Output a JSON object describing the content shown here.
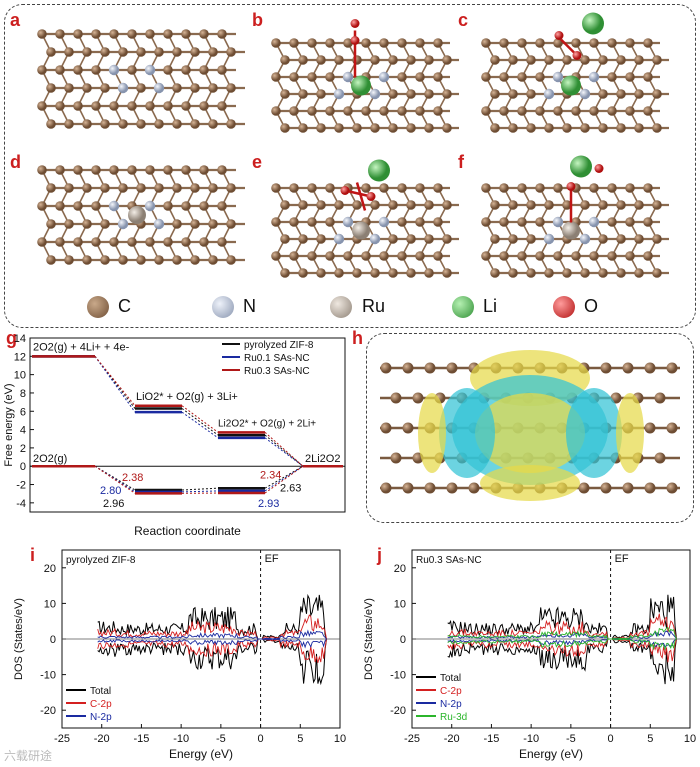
{
  "panels": {
    "a": "a",
    "b": "b",
    "c": "c",
    "d": "d",
    "e": "e",
    "f": "f",
    "g": "g",
    "h": "h",
    "i": "i",
    "j": "j"
  },
  "structure_legend": [
    {
      "label": "C",
      "color": "#8a6a4f"
    },
    {
      "label": "N",
      "color": "#a9b6cf"
    },
    {
      "label": "Ru",
      "color": "#b8aca0"
    },
    {
      "label": "Li",
      "color": "#56b95a"
    },
    {
      "label": "O",
      "color": "#d92a2a"
    }
  ],
  "chart_data": [
    {
      "type": "line",
      "id": "g",
      "ylabel": "Free energy (eV)",
      "xlabel": "Reaction coordinate",
      "ylim": [
        -5,
        14
      ],
      "yticks": [
        -4,
        -2,
        0,
        2,
        4,
        6,
        8,
        10,
        12,
        14
      ],
      "legend": [
        "pyrolyzed ZIF-8",
        "Ru0.1 SAs-NC",
        "Ru0.3 SAs-NC"
      ],
      "legend_placement": "top-right",
      "series": [
        {
          "name": "pyrolyzed ZIF-8",
          "color": "#111111",
          "upper": [
            12,
            6.3,
            3.4,
            0
          ],
          "lower": [
            0,
            -2.6,
            -2.4,
            0
          ]
        },
        {
          "name": "Ru0.1 SAs-NC",
          "color": "#1a2aa0",
          "upper": [
            12,
            5.9,
            3.1,
            0
          ],
          "lower": [
            0,
            -2.8,
            -2.7,
            0
          ]
        },
        {
          "name": "Ru0.3 SAs-NC",
          "color": "#b01818",
          "upper": [
            12,
            6.6,
            3.7,
            0
          ],
          "lower": [
            0,
            -2.96,
            -2.93,
            0
          ]
        }
      ],
      "level_labels": {
        "s0": "2O2(g) + 4Li+ + 4e-",
        "s1": "LiO2* + O2(g) + 3Li+",
        "s2": "Li2O2* + O2(g) + 2Li+",
        "s3": "2Li2O2",
        "ref": "2O2(g)"
      },
      "value_labels": [
        {
          "text": "2.38",
          "color": "#b01818"
        },
        {
          "text": "2.80",
          "color": "#1a2aa0"
        },
        {
          "text": "2.96",
          "color": "#111111"
        },
        {
          "text": "2.34",
          "color": "#b01818"
        },
        {
          "text": "2.63",
          "color": "#111111"
        },
        {
          "text": "2.93",
          "color": "#1a2aa0"
        }
      ]
    },
    {
      "type": "line",
      "id": "i",
      "title": "pyrolyzed ZIF-8",
      "xlabel": "Energy (eV)",
      "ylabel": "DOS (States/eV)",
      "xlim": [
        -25,
        10
      ],
      "ylim": [
        -25,
        25
      ],
      "xticks": [
        -25,
        -20,
        -15,
        -10,
        -5,
        0,
        5,
        10
      ],
      "yticks": [
        -20,
        -10,
        0,
        10,
        20
      ],
      "fermi_label": "EF",
      "legend": [
        "Total",
        "C-2p",
        "N-2p"
      ],
      "legend_colors": [
        "#000000",
        "#d42020",
        "#1a2aa0"
      ],
      "legend_placement": "bottom-left"
    },
    {
      "type": "line",
      "id": "j",
      "title": "Ru0.3 SAs-NC",
      "xlabel": "Energy (eV)",
      "ylabel": "DOS (States/eV)",
      "xlim": [
        -25,
        10
      ],
      "ylim": [
        -25,
        25
      ],
      "xticks": [
        -25,
        -20,
        -15,
        -10,
        -5,
        0,
        5,
        10
      ],
      "yticks": [
        -20,
        -10,
        0,
        10,
        20
      ],
      "fermi_label": "EF",
      "legend": [
        "Total",
        "C-2p",
        "N-2p",
        "Ru-3d"
      ],
      "legend_colors": [
        "#000000",
        "#d42020",
        "#1a2aa0",
        "#2bb52b"
      ],
      "legend_placement": "bottom-left"
    }
  ],
  "watermark": "六载研途"
}
